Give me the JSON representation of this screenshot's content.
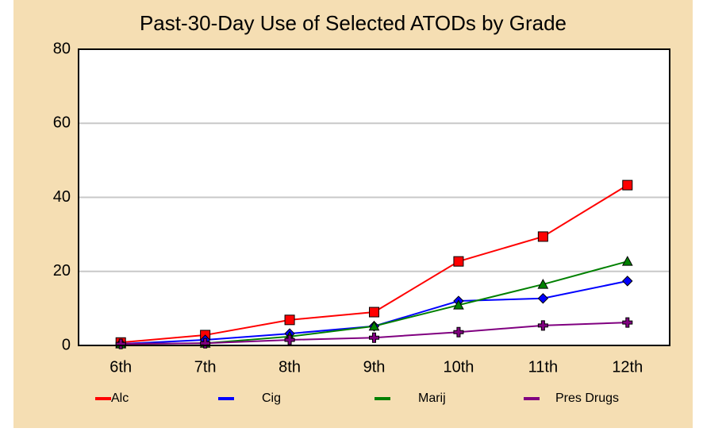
{
  "chart_data": {
    "type": "line",
    "title": "Past-30-Day Use of Selected ATODs by Grade",
    "categories": [
      "6th",
      "7th",
      "8th",
      "9th",
      "10th",
      "11th",
      "12th"
    ],
    "series": [
      {
        "name": "Alc",
        "color": "#ff0000",
        "marker": "square",
        "values": [
          0.8,
          2.8,
          6.9,
          9.0,
          22.7,
          29.4,
          43.3
        ]
      },
      {
        "name": "Cig",
        "color": "#0000ff",
        "marker": "diamond",
        "values": [
          0.4,
          1.5,
          3.2,
          5.2,
          12.0,
          12.7,
          17.4
        ]
      },
      {
        "name": "Marij",
        "color": "#008000",
        "marker": "triangle",
        "values": [
          0.4,
          0.6,
          2.4,
          5.2,
          10.9,
          16.5,
          22.7
        ]
      },
      {
        "name": "Pres Drugs",
        "color": "#800080",
        "marker": "plus",
        "values": [
          0.4,
          0.6,
          1.5,
          2.1,
          3.6,
          5.4,
          6.2
        ]
      }
    ],
    "ylim": [
      0,
      80
    ],
    "yticks": [
      0,
      20,
      40,
      60,
      80
    ],
    "grid": true,
    "legend": "bottom"
  }
}
